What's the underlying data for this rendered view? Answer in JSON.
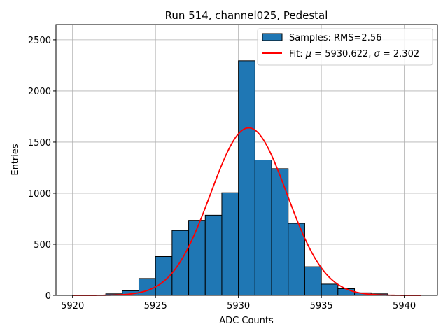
{
  "chart_data": {
    "type": "bar",
    "title": "Run 514, channel025, Pedestal",
    "xlabel": "ADC Counts",
    "ylabel": "Entries",
    "xlim": [
      5919.0,
      5942.0
    ],
    "ylim": [
      0,
      2650
    ],
    "xticks": [
      5920,
      5925,
      5930,
      5935,
      5940
    ],
    "yticks": [
      0,
      500,
      1000,
      1500,
      2000,
      2500
    ],
    "grid": true,
    "legend_position": "top-right",
    "histogram": {
      "name": "Samples: RMS=2.56",
      "color": "#1f77b4",
      "edgecolor": "#000000",
      "bin_edges": [
        5920,
        5921,
        5922,
        5923,
        5924,
        5925,
        5926,
        5927,
        5928,
        5929,
        5930,
        5931,
        5932,
        5933,
        5934,
        5935,
        5936,
        5937,
        5938,
        5939,
        5940,
        5941
      ],
      "counts": [
        0,
        0,
        15,
        45,
        165,
        380,
        635,
        735,
        785,
        1005,
        2295,
        1325,
        1240,
        705,
        280,
        110,
        65,
        25,
        15,
        0,
        0
      ]
    },
    "fit": {
      "name": "Fit: μ = 5930.622, σ = 2.302",
      "name_parts": {
        "prefix": "Fit: ",
        "mu_symbol": "μ",
        "mu_value": " = 5930.622, ",
        "sigma_symbol": "σ",
        "sigma_value": " = 2.302"
      },
      "color": "#ff0000",
      "mu": 5930.622,
      "sigma": 2.302,
      "amplitude": 1640,
      "x_range": [
        5920,
        5941
      ]
    }
  }
}
